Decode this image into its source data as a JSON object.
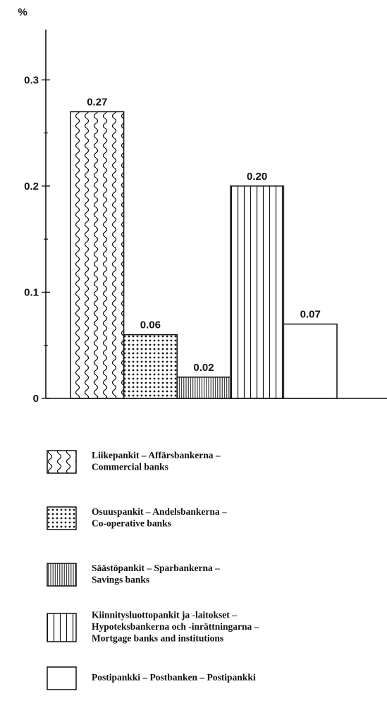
{
  "chart_data": {
    "type": "bar",
    "y_axis_label": "%",
    "categories": [
      [
        "Liikepankit – Affärsbankerna –",
        "Commercial banks"
      ],
      [
        "Osuuspankit – Andelsbankerna –",
        "Co-operative banks"
      ],
      [
        "Säästöpankit – Sparbankerna –",
        "Savings banks"
      ],
      [
        "Kiinnitysluottopankit ja -laitokset –",
        "Hypoteksbankerna och -inrättningarna –",
        "Mortgage banks and institutions"
      ],
      [
        "Postipankki – Postbanken – Postipankki"
      ]
    ],
    "values": [
      0.27,
      0.06,
      0.02,
      0.2,
      0.07
    ],
    "value_labels": [
      "0.27",
      "0.06",
      "0.02",
      "0.20",
      "0.07"
    ],
    "patterns": [
      "wavy",
      "dots",
      "fine-lines",
      "wide-lines",
      "none"
    ],
    "color": "#111111",
    "ylim": [
      0,
      0.35
    ],
    "yticks": [
      0,
      0.1,
      0.2,
      0.3
    ],
    "minor_yticks": [
      0.05,
      0.15,
      0.25
    ],
    "grid": false
  }
}
